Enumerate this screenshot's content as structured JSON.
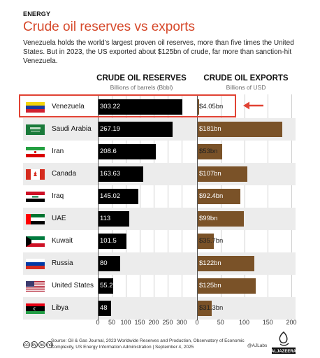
{
  "kicker": "ENERGY",
  "title": "Crude oil reserves vs exports",
  "subtitle": "Venezuela holds the world’s largest proven oil reserves, more than five times the United States. But in 2023, the US exported about $125bn of crude, far more than sanction-hit Venezuela.",
  "colors": {
    "title": "#d6482a",
    "reserves_bar": "#000000",
    "exports_bar": "#7a5228",
    "highlight": "#e14233",
    "row_shade": "#ececec"
  },
  "chart_data": [
    {
      "type": "bar",
      "orientation": "horizontal",
      "title": "CRUDE OIL RESERVES",
      "unit": "Billions of barrels (Bbbl)",
      "categories": [
        "Venezuela",
        "Saudi Arabia",
        "Iran",
        "Canada",
        "Iraq",
        "UAE",
        "Kuwait",
        "Russia",
        "United States",
        "Libya"
      ],
      "values": [
        303.22,
        267.19,
        208.6,
        163.63,
        145.02,
        113,
        101.5,
        80,
        55.2,
        48
      ],
      "labels": [
        "303.22",
        "267.19",
        "208.6",
        "163.63",
        "145.02",
        "113",
        "101.5",
        "80",
        "55.2",
        "48"
      ],
      "xlim": [
        0,
        300
      ],
      "ticks": [
        "0",
        "50",
        "100",
        "150",
        "200",
        "250",
        "300"
      ],
      "grid": true
    },
    {
      "type": "bar",
      "orientation": "horizontal",
      "title": "CRUDE OIL EXPORTS",
      "unit": "Billions of USD",
      "categories": [
        "Venezuela",
        "Saudi Arabia",
        "Iran",
        "Canada",
        "Iraq",
        "UAE",
        "Kuwait",
        "Russia",
        "United States",
        "Libya"
      ],
      "values": [
        4.05,
        181,
        53,
        107,
        92.4,
        99,
        35.7,
        122,
        125,
        31.3
      ],
      "labels": [
        "$4.05bn",
        "$181bn",
        "$53bn",
        "$107bn",
        "$92.4bn",
        "$99bn",
        "$35.7bn",
        "$122bn",
        "$125bn",
        "$31.3bn"
      ],
      "xlim": [
        0,
        200
      ],
      "ticks": [
        "0",
        "50",
        "100",
        "150",
        "200"
      ],
      "grid": true
    }
  ],
  "highlight": {
    "country": "Venezuela",
    "arrow_icon": "left-arrow-icon"
  },
  "footer": {
    "license_icons": [
      "cc",
      "by",
      "nc",
      "nd"
    ],
    "source": "Source: Oil & Gas Journal, 2023 Worldwide Reserves and Production, Observatory of Economic Complexity, US Energy Information Administration  |  September 4, 2025",
    "credit": "@AJLabs",
    "logo_text": "ALJAZEERA"
  }
}
